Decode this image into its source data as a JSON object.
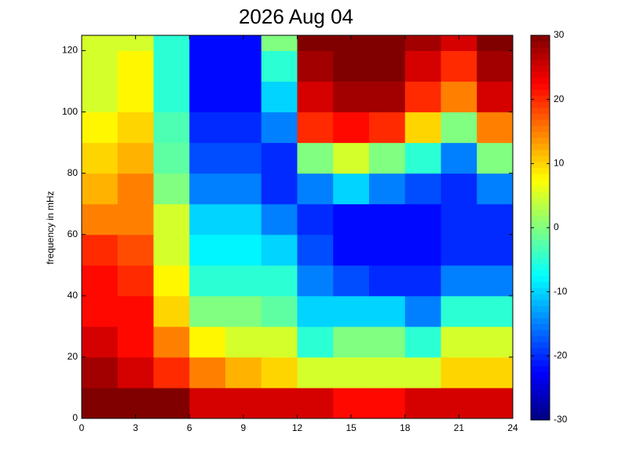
{
  "chart_data": {
    "type": "heatmap",
    "title": "2026 Aug 04",
    "ylabel": "frequency in mHz",
    "colormap": "jet",
    "x_bins": [
      0,
      2,
      4,
      6,
      8,
      10,
      12,
      14,
      16,
      18,
      20,
      22,
      24
    ],
    "y_bins": [
      0,
      10,
      20,
      30,
      40,
      50,
      60,
      70,
      80,
      90,
      100,
      110,
      120,
      125
    ],
    "values": [
      [
        30,
        30,
        30,
        25,
        25,
        25,
        25,
        22,
        22,
        25,
        25,
        25
      ],
      [
        28,
        25,
        20,
        15,
        12,
        10,
        5,
        5,
        5,
        5,
        10,
        10
      ],
      [
        25,
        22,
        15,
        8,
        5,
        5,
        -5,
        0,
        0,
        -5,
        5,
        5
      ],
      [
        22,
        22,
        10,
        0,
        0,
        -2,
        -10,
        -10,
        -10,
        -15,
        -5,
        -5
      ],
      [
        22,
        20,
        8,
        -5,
        -5,
        -5,
        -15,
        -18,
        -20,
        -20,
        -15,
        -15
      ],
      [
        20,
        18,
        5,
        -8,
        -8,
        -10,
        -18,
        -22,
        -22,
        -22,
        -20,
        -20
      ],
      [
        15,
        15,
        5,
        -10,
        -10,
        -15,
        -20,
        -22,
        -22,
        -22,
        -20,
        -20
      ],
      [
        12,
        15,
        0,
        -15,
        -15,
        -20,
        -15,
        -10,
        -15,
        -18,
        -20,
        -15
      ],
      [
        10,
        12,
        -2,
        -18,
        -18,
        -20,
        0,
        5,
        0,
        -5,
        -15,
        0
      ],
      [
        8,
        10,
        -3,
        -20,
        -20,
        -15,
        20,
        22,
        20,
        10,
        0,
        15
      ],
      [
        5,
        8,
        -5,
        -22,
        -22,
        -10,
        25,
        28,
        28,
        20,
        15,
        25
      ],
      [
        5,
        8,
        -5,
        -22,
        -22,
        -5,
        28,
        30,
        30,
        25,
        20,
        28
      ],
      [
        5,
        5,
        -5,
        -22,
        -22,
        0,
        30,
        30,
        30,
        28,
        25,
        30
      ]
    ],
    "xlim": [
      0,
      24
    ],
    "xticks": [
      0,
      3,
      6,
      9,
      12,
      15,
      18,
      21,
      24
    ],
    "ylim": [
      0,
      125
    ],
    "yticks": [
      0,
      20,
      40,
      60,
      80,
      100,
      120
    ],
    "clim": [
      -30,
      30
    ],
    "cticks": [
      -30,
      -20,
      -10,
      0,
      10,
      20,
      30
    ]
  }
}
